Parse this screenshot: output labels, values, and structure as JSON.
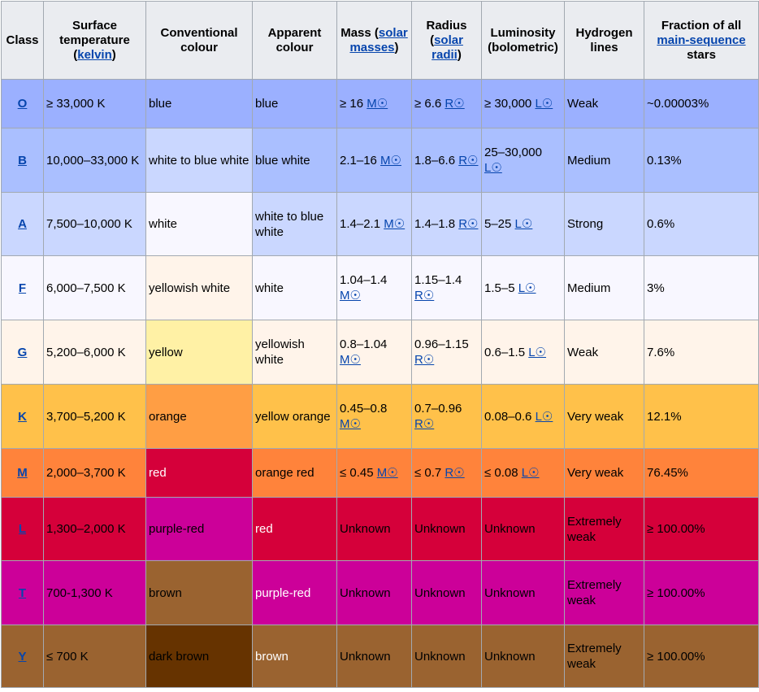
{
  "headers": [
    {
      "parts": [
        {
          "t": "Class"
        }
      ]
    },
    {
      "parts": [
        {
          "t": "Surface temperature ("
        },
        {
          "t": "kelvin",
          "link": true
        },
        {
          "t": ")"
        }
      ]
    },
    {
      "parts": [
        {
          "t": "Conventional colour"
        }
      ]
    },
    {
      "parts": [
        {
          "t": "Apparent colour"
        }
      ]
    },
    {
      "parts": [
        {
          "t": "Mass ("
        },
        {
          "t": "solar masses",
          "link": true
        },
        {
          "t": ")"
        }
      ]
    },
    {
      "parts": [
        {
          "t": "Radius ("
        },
        {
          "t": "solar radii",
          "link": true
        },
        {
          "t": ")"
        }
      ]
    },
    {
      "parts": [
        {
          "t": "Luminosity (bolometric)"
        }
      ]
    },
    {
      "parts": [
        {
          "t": "Hydrogen lines"
        }
      ]
    },
    {
      "parts": [
        {
          "t": "Fraction of all "
        },
        {
          "t": "main-sequence",
          "link": true
        },
        {
          "t": " stars"
        }
      ]
    }
  ],
  "rows": [
    {
      "height": 60,
      "cells": [
        {
          "parts": [
            {
              "t": "O",
              "link": true
            }
          ],
          "bg": "#9bb0ff"
        },
        {
          "parts": [
            {
              "t": "≥ 33,000 K"
            }
          ],
          "bg": "#9bb0ff"
        },
        {
          "parts": [
            {
              "t": "blue"
            }
          ],
          "bg": "#9bb0ff"
        },
        {
          "parts": [
            {
              "t": "blue"
            }
          ],
          "bg": "#9bb0ff"
        },
        {
          "parts": [
            {
              "t": "≥ 16 "
            },
            {
              "t": "M☉",
              "link": true
            }
          ],
          "bg": "#9bb0ff"
        },
        {
          "parts": [
            {
              "t": "≥ 6.6 "
            },
            {
              "t": "R☉",
              "link": true
            }
          ],
          "bg": "#9bb0ff"
        },
        {
          "parts": [
            {
              "t": "≥ 30,000 "
            },
            {
              "t": "L☉",
              "link": true
            }
          ],
          "bg": "#9bb0ff"
        },
        {
          "parts": [
            {
              "t": "Weak"
            }
          ],
          "bg": "#9bb0ff"
        },
        {
          "parts": [
            {
              "t": "~0.00003%"
            }
          ],
          "bg": "#9bb0ff"
        }
      ]
    },
    {
      "height": 79,
      "cells": [
        {
          "parts": [
            {
              "t": "B",
              "link": true
            }
          ],
          "bg": "#aabfff"
        },
        {
          "parts": [
            {
              "t": "10,000–33,000 K"
            }
          ],
          "bg": "#aabfff"
        },
        {
          "parts": [
            {
              "t": "white to blue white"
            }
          ],
          "bg": "#cad7ff"
        },
        {
          "parts": [
            {
              "t": "blue white"
            }
          ],
          "bg": "#aabfff"
        },
        {
          "parts": [
            {
              "t": "2.1–16 "
            },
            {
              "t": "M☉",
              "link": true
            }
          ],
          "bg": "#aabfff"
        },
        {
          "parts": [
            {
              "t": "1.8–6.6 "
            },
            {
              "t": "R☉",
              "link": true
            }
          ],
          "bg": "#aabfff"
        },
        {
          "parts": [
            {
              "t": "25–30,000 "
            },
            {
              "t": "L☉",
              "link": true
            }
          ],
          "bg": "#aabfff"
        },
        {
          "parts": [
            {
              "t": "Medium"
            }
          ],
          "bg": "#aabfff"
        },
        {
          "parts": [
            {
              "t": "0.13%"
            }
          ],
          "bg": "#aabfff"
        }
      ]
    },
    {
      "height": 78,
      "cells": [
        {
          "parts": [
            {
              "t": "A",
              "link": true
            }
          ],
          "bg": "#cad7ff"
        },
        {
          "parts": [
            {
              "t": "7,500–10,000 K"
            }
          ],
          "bg": "#cad7ff"
        },
        {
          "parts": [
            {
              "t": "white"
            }
          ],
          "bg": "#f8f7ff"
        },
        {
          "parts": [
            {
              "t": "white to blue white"
            }
          ],
          "bg": "#cad7ff"
        },
        {
          "parts": [
            {
              "t": "1.4–2.1 "
            },
            {
              "t": "M☉",
              "link": true
            }
          ],
          "bg": "#cad7ff"
        },
        {
          "parts": [
            {
              "t": "1.4–1.8 "
            },
            {
              "t": "R☉",
              "link": true
            }
          ],
          "bg": "#cad7ff"
        },
        {
          "parts": [
            {
              "t": "5–25 "
            },
            {
              "t": "L☉",
              "link": true
            }
          ],
          "bg": "#cad7ff"
        },
        {
          "parts": [
            {
              "t": "Strong"
            }
          ],
          "bg": "#cad7ff"
        },
        {
          "parts": [
            {
              "t": "0.6%"
            }
          ],
          "bg": "#cad7ff"
        }
      ]
    },
    {
      "height": 79,
      "cells": [
        {
          "parts": [
            {
              "t": "F",
              "link": true
            }
          ],
          "bg": "#f8f7ff"
        },
        {
          "parts": [
            {
              "t": "6,000–7,500 K"
            }
          ],
          "bg": "#f8f7ff"
        },
        {
          "parts": [
            {
              "t": "yellowish white"
            }
          ],
          "bg": "#fff4ea"
        },
        {
          "parts": [
            {
              "t": "white"
            }
          ],
          "bg": "#f8f7ff"
        },
        {
          "parts": [
            {
              "t": "1.04–1.4 "
            },
            {
              "t": "M☉",
              "link": true
            }
          ],
          "bg": "#f8f7ff"
        },
        {
          "parts": [
            {
              "t": "1.15–1.4 "
            },
            {
              "t": "R☉",
              "link": true
            }
          ],
          "bg": "#f8f7ff"
        },
        {
          "parts": [
            {
              "t": "1.5–5 "
            },
            {
              "t": "L☉",
              "link": true
            }
          ],
          "bg": "#f8f7ff"
        },
        {
          "parts": [
            {
              "t": "Medium"
            }
          ],
          "bg": "#f8f7ff"
        },
        {
          "parts": [
            {
              "t": "3%"
            }
          ],
          "bg": "#f8f7ff"
        }
      ]
    },
    {
      "height": 79,
      "cells": [
        {
          "parts": [
            {
              "t": "G",
              "link": true
            }
          ],
          "bg": "#fff4ea"
        },
        {
          "parts": [
            {
              "t": "5,200–6,000 K"
            }
          ],
          "bg": "#fff4ea"
        },
        {
          "parts": [
            {
              "t": "yellow"
            }
          ],
          "bg": "#fff1a5"
        },
        {
          "parts": [
            {
              "t": "yellowish white"
            }
          ],
          "bg": "#fff4ea"
        },
        {
          "parts": [
            {
              "t": "0.8–1.04 "
            },
            {
              "t": "M☉",
              "link": true
            }
          ],
          "bg": "#fff4ea"
        },
        {
          "parts": [
            {
              "t": "0.96–1.15 "
            },
            {
              "t": "R☉",
              "link": true
            }
          ],
          "bg": "#fff4ea"
        },
        {
          "parts": [
            {
              "t": "0.6–1.5 "
            },
            {
              "t": "L☉",
              "link": true
            }
          ],
          "bg": "#fff4ea"
        },
        {
          "parts": [
            {
              "t": "Weak"
            }
          ],
          "bg": "#fff4ea"
        },
        {
          "parts": [
            {
              "t": "7.6%"
            }
          ],
          "bg": "#fff4ea"
        }
      ]
    },
    {
      "height": 79,
      "cells": [
        {
          "parts": [
            {
              "t": "K",
              "link": true
            }
          ],
          "bg": "#ffc14a"
        },
        {
          "parts": [
            {
              "t": "3,700–5,200 K"
            }
          ],
          "bg": "#ffc14a"
        },
        {
          "parts": [
            {
              "t": "orange"
            }
          ],
          "bg": "#ff9e44"
        },
        {
          "parts": [
            {
              "t": "yellow orange"
            }
          ],
          "bg": "#ffc14a"
        },
        {
          "parts": [
            {
              "t": "0.45–0.8 "
            },
            {
              "t": "M☉",
              "link": true
            }
          ],
          "bg": "#ffc14a"
        },
        {
          "parts": [
            {
              "t": "0.7–0.96 "
            },
            {
              "t": "R☉",
              "link": true
            }
          ],
          "bg": "#ffc14a"
        },
        {
          "parts": [
            {
              "t": "0.08–0.6 "
            },
            {
              "t": "L☉",
              "link": true
            }
          ],
          "bg": "#ffc14a"
        },
        {
          "parts": [
            {
              "t": "Very weak"
            }
          ],
          "bg": "#ffc14a"
        },
        {
          "parts": [
            {
              "t": "12.1%"
            }
          ],
          "bg": "#ffc14a"
        }
      ]
    },
    {
      "height": 60,
      "cells": [
        {
          "parts": [
            {
              "t": "M",
              "link": true
            }
          ],
          "bg": "#ff833b"
        },
        {
          "parts": [
            {
              "t": "2,000–3,700 K"
            }
          ],
          "bg": "#ff833b"
        },
        {
          "parts": [
            {
              "t": "red",
              "fg": "#ffffff"
            }
          ],
          "bg": "#d5003a"
        },
        {
          "parts": [
            {
              "t": "orange red"
            }
          ],
          "bg": "#ff833b"
        },
        {
          "parts": [
            {
              "t": "≤ 0.45 "
            },
            {
              "t": "M☉",
              "link": true
            }
          ],
          "bg": "#ff833b"
        },
        {
          "parts": [
            {
              "t": "≤ 0.7 "
            },
            {
              "t": "R☉",
              "link": true
            }
          ],
          "bg": "#ff833b"
        },
        {
          "parts": [
            {
              "t": "≤ 0.08 "
            },
            {
              "t": "L☉",
              "link": true
            }
          ],
          "bg": "#ff833b"
        },
        {
          "parts": [
            {
              "t": "Very weak"
            }
          ],
          "bg": "#ff833b"
        },
        {
          "parts": [
            {
              "t": "76.45%"
            }
          ],
          "bg": "#ff833b"
        }
      ]
    },
    {
      "height": 78,
      "cells": [
        {
          "parts": [
            {
              "t": "L",
              "link": true
            }
          ],
          "bg": "#d5003a"
        },
        {
          "parts": [
            {
              "t": "1,300–2,000 K"
            }
          ],
          "bg": "#d5003a"
        },
        {
          "parts": [
            {
              "t": "purple-red"
            }
          ],
          "bg": "#cc0099"
        },
        {
          "parts": [
            {
              "t": "red",
              "fg": "#ffffff"
            }
          ],
          "bg": "#d5003a"
        },
        {
          "parts": [
            {
              "t": "Unknown"
            }
          ],
          "bg": "#d5003a"
        },
        {
          "parts": [
            {
              "t": "Unknown"
            }
          ],
          "bg": "#d5003a"
        },
        {
          "parts": [
            {
              "t": "Unknown"
            }
          ],
          "bg": "#d5003a"
        },
        {
          "parts": [
            {
              "t": "Extremely weak"
            }
          ],
          "bg": "#d5003a"
        },
        {
          "parts": [
            {
              "t": "≥ 100.00%"
            }
          ],
          "bg": "#d5003a"
        }
      ]
    },
    {
      "height": 79,
      "cells": [
        {
          "parts": [
            {
              "t": "T",
              "link": true
            }
          ],
          "bg": "#cc0099"
        },
        {
          "parts": [
            {
              "t": "700-1,300 K"
            }
          ],
          "bg": "#cc0099"
        },
        {
          "parts": [
            {
              "t": "brown"
            }
          ],
          "bg": "#9a6330"
        },
        {
          "parts": [
            {
              "t": "purple-red",
              "fg": "#ffffff"
            }
          ],
          "bg": "#cc0099"
        },
        {
          "parts": [
            {
              "t": "Unknown"
            }
          ],
          "bg": "#cc0099"
        },
        {
          "parts": [
            {
              "t": "Unknown"
            }
          ],
          "bg": "#cc0099"
        },
        {
          "parts": [
            {
              "t": "Unknown"
            }
          ],
          "bg": "#cc0099"
        },
        {
          "parts": [
            {
              "t": "Extremely weak"
            }
          ],
          "bg": "#cc0099"
        },
        {
          "parts": [
            {
              "t": "≥ 100.00%"
            }
          ],
          "bg": "#cc0099"
        }
      ]
    },
    {
      "height": 77,
      "cells": [
        {
          "parts": [
            {
              "t": "Y",
              "link": true
            }
          ],
          "bg": "#9a6330"
        },
        {
          "parts": [
            {
              "t": "≤ 700 K"
            }
          ],
          "bg": "#9a6330"
        },
        {
          "parts": [
            {
              "t": "dark brown"
            }
          ],
          "bg": "#663300"
        },
        {
          "parts": [
            {
              "t": "brown",
              "fg": "#ffffff"
            }
          ],
          "bg": "#9a6330"
        },
        {
          "parts": [
            {
              "t": "Unknown"
            }
          ],
          "bg": "#9a6330"
        },
        {
          "parts": [
            {
              "t": "Unknown"
            }
          ],
          "bg": "#9a6330"
        },
        {
          "parts": [
            {
              "t": "Unknown"
            }
          ],
          "bg": "#9a6330"
        },
        {
          "parts": [
            {
              "t": "Extremely weak"
            }
          ],
          "bg": "#9a6330"
        },
        {
          "parts": [
            {
              "t": "≥ 100.00%"
            }
          ],
          "bg": "#9a6330"
        }
      ]
    }
  ]
}
